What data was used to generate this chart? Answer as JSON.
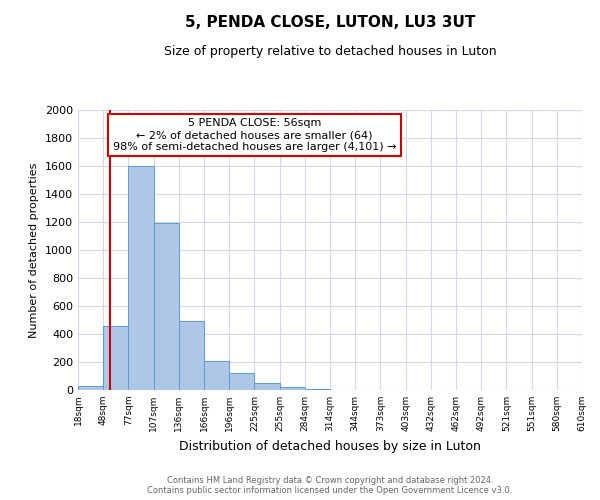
{
  "title": "5, PENDA CLOSE, LUTON, LU3 3UT",
  "subtitle": "Size of property relative to detached houses in Luton",
  "xlabel": "Distribution of detached houses by size in Luton",
  "ylabel": "Number of detached properties",
  "bin_labels": [
    "18sqm",
    "48sqm",
    "77sqm",
    "107sqm",
    "136sqm",
    "166sqm",
    "196sqm",
    "225sqm",
    "255sqm",
    "284sqm",
    "314sqm",
    "344sqm",
    "373sqm",
    "403sqm",
    "432sqm",
    "462sqm",
    "492sqm",
    "521sqm",
    "551sqm",
    "580sqm",
    "610sqm"
  ],
  "bar_values": [
    30,
    460,
    1600,
    1190,
    490,
    210,
    120,
    48,
    20,
    10,
    0,
    0,
    0,
    0,
    0,
    0,
    0,
    0,
    0,
    0
  ],
  "bar_color": "#aec6e8",
  "bar_edge_color": "#5b9bd5",
  "ylim": [
    0,
    2000
  ],
  "yticks": [
    0,
    200,
    400,
    600,
    800,
    1000,
    1200,
    1400,
    1600,
    1800,
    2000
  ],
  "property_size": 56,
  "vline_color": "#cc0000",
  "annotation_text": "5 PENDA CLOSE: 56sqm\n← 2% of detached houses are smaller (64)\n98% of semi-detached houses are larger (4,101) →",
  "annotation_box_color": "#ffffff",
  "annotation_box_edge": "#cc0000",
  "footer_line1": "Contains HM Land Registry data © Crown copyright and database right 2024.",
  "footer_line2": "Contains public sector information licensed under the Open Government Licence v3.0.",
  "background_color": "#ffffff",
  "grid_color": "#d0d8e8",
  "bin_edges_values": [
    18,
    48,
    77,
    107,
    136,
    166,
    196,
    225,
    255,
    284,
    314,
    344,
    373,
    403,
    432,
    462,
    492,
    521,
    551,
    580,
    610
  ]
}
